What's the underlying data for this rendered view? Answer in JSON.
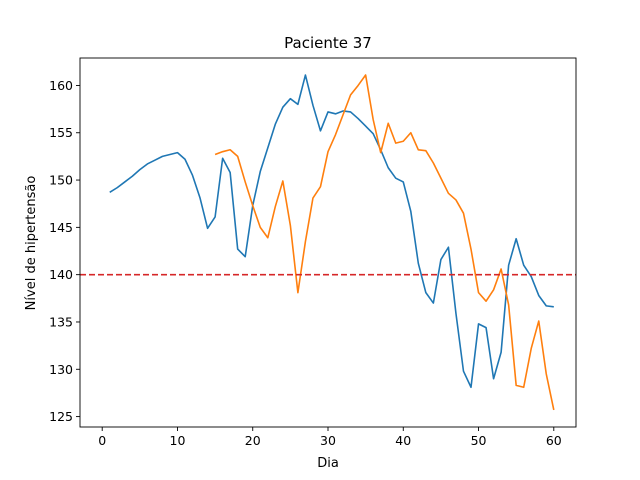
{
  "chart_data": {
    "type": "line",
    "title": "Paciente 37",
    "xlabel": "Dia",
    "ylabel": "Nível de hipertensão",
    "xlim": [
      -2.95,
      62.95
    ],
    "ylim": [
      123.9,
      162.9
    ],
    "xticks": [
      0,
      10,
      20,
      30,
      40,
      50,
      60
    ],
    "yticks": [
      125,
      130,
      135,
      140,
      145,
      150,
      155,
      160
    ],
    "grid": false,
    "legend": "none",
    "threshold": {
      "y": 140,
      "color": "#d62728",
      "style": "dashed"
    },
    "series": [
      {
        "color": "#1f77b4",
        "x": [
          1,
          2,
          3,
          4,
          5,
          6,
          7,
          8,
          9,
          10,
          11,
          12,
          13,
          14,
          15,
          16,
          17,
          18,
          19,
          20,
          21,
          22,
          23,
          24,
          25,
          26,
          27,
          28,
          29,
          30,
          31,
          32,
          33,
          34,
          35,
          36,
          37,
          38,
          39,
          40,
          41,
          42,
          43,
          44,
          45,
          46,
          47,
          48,
          49,
          50,
          51,
          52,
          53,
          54,
          55,
          56,
          57,
          58,
          59,
          60
        ],
        "y": [
          148.7,
          149.2,
          149.8,
          150.4,
          151.1,
          151.7,
          152.1,
          152.5,
          152.7,
          152.9,
          152.2,
          150.5,
          148.1,
          144.9,
          146.1,
          152.3,
          150.8,
          142.7,
          141.9,
          147.3,
          150.9,
          153.4,
          155.9,
          157.7,
          158.6,
          158.0,
          161.1,
          157.9,
          155.2,
          157.2,
          157.0,
          157.3,
          157.2,
          156.5,
          155.7,
          154.9,
          153.2,
          151.3,
          150.2,
          149.8,
          146.7,
          141.2,
          138.1,
          137.0,
          141.6,
          142.9,
          135.9,
          129.8,
          128.1,
          134.8,
          134.4,
          129.0,
          131.8,
          141.0,
          143.8,
          141.0,
          139.8,
          137.8,
          136.7,
          136.6
        ]
      },
      {
        "color": "#ff7f0e",
        "x": [
          15,
          16,
          17,
          18,
          19,
          20,
          21,
          22,
          23,
          24,
          25,
          26,
          27,
          28,
          29,
          30,
          31,
          32,
          33,
          34,
          35,
          36,
          37,
          38,
          39,
          40,
          41,
          42,
          43,
          44,
          45,
          46,
          47,
          48,
          49,
          50,
          51,
          52,
          53,
          54,
          55,
          56,
          57,
          58,
          59,
          60
        ],
        "y": [
          152.7,
          153.0,
          153.2,
          152.5,
          149.8,
          147.3,
          145.0,
          143.9,
          147.2,
          149.9,
          145.2,
          138.1,
          143.5,
          148.1,
          149.3,
          153.0,
          154.8,
          156.9,
          159.0,
          160.0,
          161.1,
          156.4,
          152.9,
          156.0,
          153.9,
          154.1,
          155.0,
          153.2,
          153.1,
          151.8,
          150.2,
          148.6,
          147.9,
          146.5,
          142.7,
          138.1,
          137.2,
          138.4,
          140.6,
          136.8,
          128.3,
          128.1,
          132.2,
          135.1,
          129.5,
          125.7
        ]
      }
    ]
  }
}
